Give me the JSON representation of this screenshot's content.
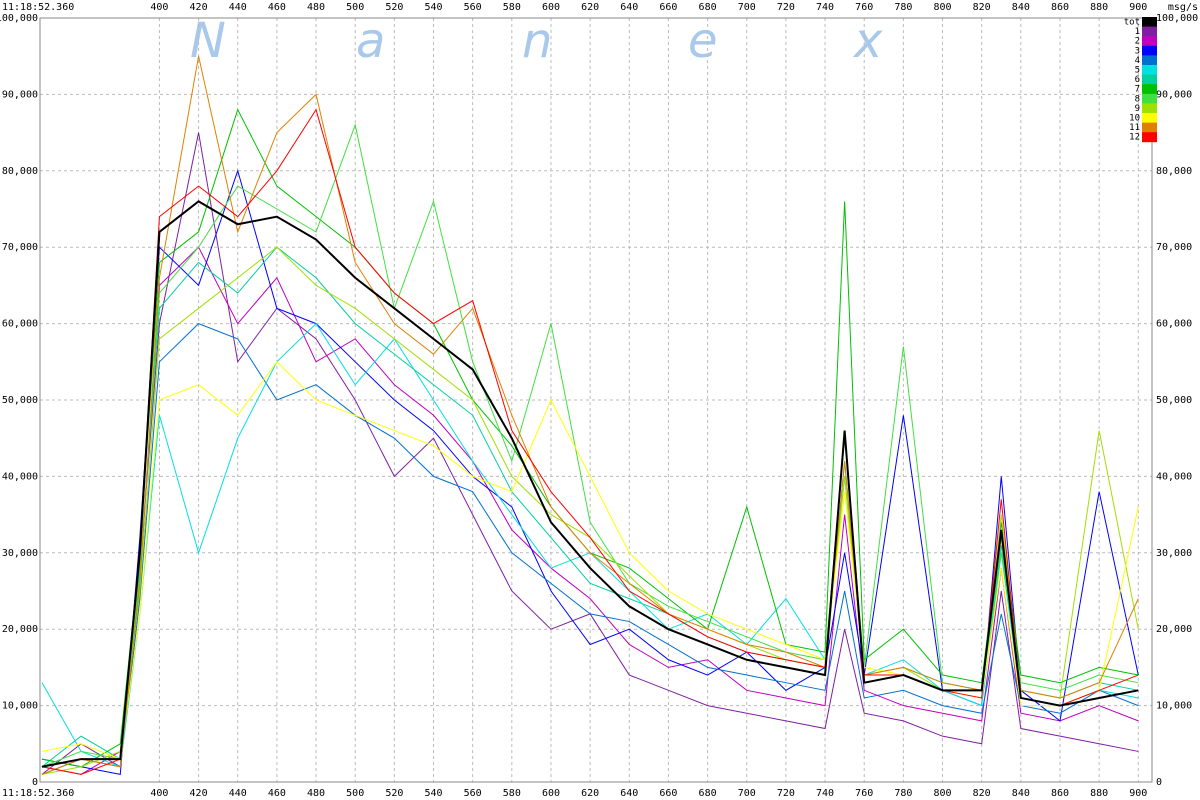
{
  "chart_data": {
    "type": "line",
    "x_start_label": "11:18:52.360",
    "y_unit_label": "msg/s",
    "watermark": [
      "N",
      "a",
      "n",
      "e",
      "x"
    ],
    "xlim": [
      339,
      907
    ],
    "xticks": [
      400,
      420,
      440,
      460,
      480,
      500,
      520,
      540,
      560,
      580,
      600,
      620,
      640,
      660,
      680,
      700,
      720,
      740,
      760,
      780,
      800,
      820,
      840,
      860,
      880,
      900
    ],
    "ylim": [
      0,
      100000
    ],
    "yticks": [
      0,
      {
        "value": 10000,
        "label": "10,000"
      },
      {
        "value": 20000,
        "label": "20,000"
      },
      {
        "value": 30000,
        "label": "30,000"
      },
      {
        "value": 40000,
        "label": "40,000"
      },
      {
        "value": 50000,
        "label": "50,000"
      },
      {
        "value": 60000,
        "label": "60,000"
      },
      {
        "value": 70000,
        "label": "70,000"
      },
      {
        "value": 80000,
        "label": "80,000"
      },
      {
        "value": 90000,
        "label": "90,000"
      },
      {
        "value": 100000,
        "label": "100,000"
      }
    ],
    "grid": true,
    "legend": "top-right",
    "x": [
      340,
      360,
      380,
      390,
      400,
      420,
      440,
      460,
      480,
      500,
      520,
      540,
      560,
      580,
      600,
      620,
      640,
      660,
      680,
      700,
      720,
      740,
      750,
      760,
      780,
      800,
      820,
      830,
      840,
      860,
      880,
      900
    ],
    "series": [
      {
        "name": "tot",
        "color": "#000000",
        "values": [
          2000,
          3000,
          3000,
          30000,
          72000,
          76000,
          73000,
          74000,
          71000,
          66000,
          62000,
          58000,
          54000,
          45000,
          34000,
          28000,
          23000,
          20000,
          18000,
          16000,
          15000,
          14000,
          46000,
          13000,
          14000,
          12000,
          12000,
          33000,
          11000,
          10000,
          11000,
          12000
        ]
      },
      {
        "name": "1",
        "color": "#7f1fa0",
        "values": [
          1000,
          5000,
          2000,
          28000,
          60000,
          85000,
          55000,
          62000,
          58000,
          50000,
          40000,
          45000,
          35000,
          25000,
          20000,
          22000,
          14000,
          12000,
          10000,
          9000,
          8000,
          7000,
          20000,
          9000,
          8000,
          6000,
          5000,
          25000,
          7000,
          6000,
          5000,
          4000
        ]
      },
      {
        "name": "2",
        "color": "#c000c0",
        "values": [
          2000,
          1000,
          4000,
          26000,
          65000,
          70000,
          60000,
          66000,
          55000,
          58000,
          52000,
          48000,
          42000,
          33000,
          28000,
          24000,
          18000,
          15000,
          16000,
          12000,
          11000,
          10000,
          35000,
          12000,
          10000,
          9000,
          8000,
          28000,
          9000,
          8000,
          10000,
          8000
        ]
      },
      {
        "name": "3",
        "color": "#0000ff",
        "values": [
          3000,
          2000,
          1000,
          32000,
          70000,
          65000,
          80000,
          62000,
          60000,
          55000,
          50000,
          46000,
          40000,
          36000,
          25000,
          18000,
          20000,
          16000,
          14000,
          17000,
          12000,
          15000,
          30000,
          14000,
          48000,
          12000,
          10000,
          40000,
          12000,
          8000,
          38000,
          14000
        ]
      },
      {
        "name": "4",
        "color": "#0070d0",
        "values": [
          1000,
          3000,
          2000,
          24000,
          55000,
          60000,
          58000,
          50000,
          52000,
          48000,
          45000,
          40000,
          38000,
          30000,
          26000,
          22000,
          21000,
          18000,
          15000,
          14000,
          13000,
          12000,
          25000,
          11000,
          12000,
          10000,
          9000,
          22000,
          10000,
          9000,
          12000,
          10000
        ]
      },
      {
        "name": "5",
        "color": "#00e0e0",
        "values": [
          13000,
          4000,
          2000,
          22000,
          48000,
          30000,
          45000,
          55000,
          60000,
          52000,
          58000,
          50000,
          42000,
          35000,
          28000,
          30000,
          25000,
          20000,
          22000,
          18000,
          24000,
          16000,
          40000,
          14000,
          16000,
          12000,
          10000,
          30000,
          11000,
          10000,
          12000,
          11000
        ]
      },
      {
        "name": "6",
        "color": "#00d0a0",
        "values": [
          2000,
          6000,
          3000,
          28000,
          62000,
          68000,
          64000,
          70000,
          66000,
          60000,
          56000,
          52000,
          48000,
          38000,
          32000,
          26000,
          24000,
          22000,
          19000,
          17000,
          16000,
          15000,
          42000,
          14000,
          15000,
          13000,
          12000,
          31000,
          12000,
          11000,
          13000,
          12000
        ]
      },
      {
        "name": "7",
        "color": "#00c000",
        "values": [
          3000,
          2000,
          5000,
          30000,
          68000,
          72000,
          88000,
          78000,
          74000,
          70000,
          64000,
          60000,
          50000,
          44000,
          36000,
          30000,
          28000,
          24000,
          20000,
          36000,
          18000,
          17000,
          76000,
          16000,
          20000,
          14000,
          13000,
          34000,
          14000,
          13000,
          15000,
          14000
        ]
      },
      {
        "name": "8",
        "color": "#40e040",
        "values": [
          2000,
          4000,
          3000,
          27000,
          64000,
          70000,
          78000,
          75000,
          72000,
          86000,
          62000,
          76000,
          55000,
          42000,
          60000,
          34000,
          26000,
          23000,
          21000,
          19000,
          17000,
          16000,
          45000,
          15000,
          57000,
          13000,
          12000,
          30000,
          13000,
          12000,
          14000,
          13000
        ]
      },
      {
        "name": "9",
        "color": "#a0e000",
        "values": [
          1000,
          2000,
          4000,
          25000,
          58000,
          62000,
          66000,
          70000,
          65000,
          62000,
          58000,
          54000,
          50000,
          40000,
          35000,
          32000,
          27000,
          22000,
          20000,
          18000,
          16000,
          15000,
          40000,
          14000,
          15000,
          12000,
          11000,
          35000,
          12000,
          11000,
          46000,
          20000
        ]
      },
      {
        "name": "10",
        "color": "#ffff00",
        "values": [
          4000,
          5000,
          3000,
          22000,
          50000,
          52000,
          48000,
          55000,
          50000,
          48000,
          46000,
          44000,
          40000,
          38000,
          50000,
          40000,
          30000,
          25000,
          22000,
          20000,
          18000,
          16000,
          38000,
          15000,
          14000,
          12000,
          11000,
          28000,
          10000,
          10000,
          12000,
          36000
        ]
      },
      {
        "name": "11",
        "color": "#e08000",
        "values": [
          1000,
          3000,
          2000,
          26000,
          66000,
          95000,
          72000,
          85000,
          90000,
          68000,
          60000,
          56000,
          62000,
          48000,
          36000,
          30000,
          26000,
          22000,
          20000,
          18000,
          17000,
          15000,
          42000,
          14000,
          15000,
          13000,
          12000,
          32000,
          12000,
          11000,
          13000,
          24000
        ]
      },
      {
        "name": "12",
        "color": "#ff0000",
        "values": [
          2000,
          1000,
          3000,
          30000,
          74000,
          78000,
          74000,
          80000,
          88000,
          70000,
          64000,
          60000,
          63000,
          46000,
          38000,
          32000,
          25000,
          22000,
          19000,
          17000,
          16000,
          15000,
          46000,
          14000,
          14000,
          12000,
          11000,
          37000,
          11000,
          10000,
          12000,
          14000
        ]
      }
    ]
  }
}
